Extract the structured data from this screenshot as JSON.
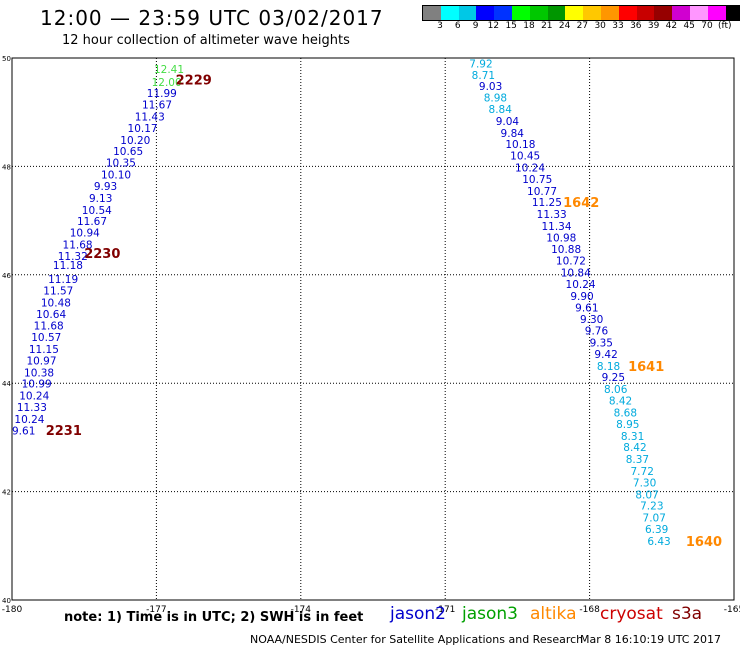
{
  "header": {
    "title": "12:00 — 23:59 UTC 03/02/2017",
    "subtitle": "12 hour collection of altimeter wave heights"
  },
  "colorbar": {
    "colors": [
      "#808080",
      "#00ffff",
      "#00c8e6",
      "#0000ff",
      "#0032ff",
      "#00ff00",
      "#00c800",
      "#009600",
      "#ffff00",
      "#ffc800",
      "#ff9600",
      "#ff0000",
      "#c80000",
      "#960000",
      "#d000d0",
      "#ff96ff",
      "#ff00ff",
      "#000000"
    ],
    "ticks": [
      "3",
      "6",
      "9",
      "12",
      "15",
      "18",
      "21",
      "24",
      "27",
      "30",
      "33",
      "36",
      "39",
      "42",
      "45",
      "70"
    ],
    "unit": "(ft)"
  },
  "map": {
    "lon_range": [
      -180,
      -165
    ],
    "lat_range": [
      40,
      50
    ],
    "lon_ticks": [
      "-180",
      "-177",
      "-174",
      "-171",
      "-168",
      "-165"
    ],
    "lat_ticks": [
      "50",
      "48",
      "46",
      "44",
      "42",
      "40"
    ],
    "grid": "dotted"
  },
  "tracks": [
    {
      "satellite": "jason2",
      "points": [
        {
          "v": "12.41",
          "lon": -177.05,
          "lat": 49.8,
          "c": "#44dd44"
        },
        {
          "v": "12.00",
          "lon": -177.1,
          "lat": 49.56,
          "c": "#44dd44"
        },
        {
          "v": "11.99",
          "lon": -177.2,
          "lat": 49.35,
          "c": "#0000cc"
        },
        {
          "v": "11.67",
          "lon": -177.3,
          "lat": 49.14,
          "c": "#0000cc"
        },
        {
          "v": "11.43",
          "lon": -177.45,
          "lat": 48.92,
          "c": "#0000cc"
        },
        {
          "v": "10.17",
          "lon": -177.6,
          "lat": 48.71,
          "c": "#0000cc"
        },
        {
          "v": "10.20",
          "lon": -177.75,
          "lat": 48.49,
          "c": "#0000cc"
        },
        {
          "v": "10.65",
          "lon": -177.9,
          "lat": 48.28,
          "c": "#0000cc"
        },
        {
          "v": "10.35",
          "lon": -178.05,
          "lat": 48.07,
          "c": "#0000cc"
        },
        {
          "v": "10.10",
          "lon": -178.15,
          "lat": 47.85,
          "c": "#0000cc"
        },
        {
          "v": "9.93",
          "lon": -178.3,
          "lat": 47.64,
          "c": "#0000cc"
        },
        {
          "v": "9.13",
          "lon": -178.4,
          "lat": 47.42,
          "c": "#0000cc"
        },
        {
          "v": "10.54",
          "lon": -178.55,
          "lat": 47.2,
          "c": "#0000cc"
        },
        {
          "v": "11.67",
          "lon": -178.65,
          "lat": 46.99,
          "c": "#0000cc"
        },
        {
          "v": "10.94",
          "lon": -178.8,
          "lat": 46.78,
          "c": "#0000cc"
        },
        {
          "v": "11.68",
          "lon": -178.95,
          "lat": 46.56,
          "c": "#0000cc"
        },
        {
          "v": "11.32",
          "lon": -179.05,
          "lat": 46.35,
          "c": "#0000cc"
        },
        {
          "v": "11.18",
          "lon": -179.15,
          "lat": 46.18,
          "c": "#0000cc"
        },
        {
          "v": "11.19",
          "lon": -179.25,
          "lat": 45.92,
          "c": "#0000cc"
        },
        {
          "v": "11.57",
          "lon": -179.35,
          "lat": 45.71,
          "c": "#0000cc"
        },
        {
          "v": "10.48",
          "lon": -179.4,
          "lat": 45.49,
          "c": "#0000cc"
        },
        {
          "v": "10.64",
          "lon": -179.5,
          "lat": 45.28,
          "c": "#0000cc"
        },
        {
          "v": "11.68",
          "lon": -179.55,
          "lat": 45.06,
          "c": "#0000cc"
        },
        {
          "v": "10.57",
          "lon": -179.6,
          "lat": 44.85,
          "c": "#0000cc"
        },
        {
          "v": "11.15",
          "lon": -179.65,
          "lat": 44.63,
          "c": "#0000cc"
        },
        {
          "v": "10.97",
          "lon": -179.7,
          "lat": 44.42,
          "c": "#0000cc"
        },
        {
          "v": "10.38",
          "lon": -179.75,
          "lat": 44.2,
          "c": "#0000cc"
        },
        {
          "v": "10.99",
          "lon": -179.8,
          "lat": 43.99,
          "c": "#0000cc"
        },
        {
          "v": "10.24",
          "lon": -179.85,
          "lat": 43.77,
          "c": "#0000cc"
        },
        {
          "v": "11.33",
          "lon": -179.9,
          "lat": 43.56,
          "c": "#0000cc"
        },
        {
          "v": "10.24",
          "lon": -179.95,
          "lat": 43.34,
          "c": "#0000cc"
        },
        {
          "v": "9.61",
          "lon": -180,
          "lat": 43.13,
          "c": "#0000cc"
        }
      ]
    },
    {
      "satellite": "jason2",
      "points": [
        {
          "v": "7.92",
          "lon": -170.5,
          "lat": 49.9,
          "c": "#00aadd"
        },
        {
          "v": "8.71",
          "lon": -170.45,
          "lat": 49.69,
          "c": "#00aadd"
        },
        {
          "v": "9.03",
          "lon": -170.3,
          "lat": 49.48,
          "c": "#0000cc"
        },
        {
          "v": "8.98",
          "lon": -170.2,
          "lat": 49.27,
          "c": "#00aadd"
        },
        {
          "v": "8.84",
          "lon": -170.1,
          "lat": 49.06,
          "c": "#00aadd"
        },
        {
          "v": "9.04",
          "lon": -169.95,
          "lat": 48.84,
          "c": "#0000cc"
        },
        {
          "v": "9.84",
          "lon": -169.85,
          "lat": 48.62,
          "c": "#0000cc"
        },
        {
          "v": "10.18",
          "lon": -169.75,
          "lat": 48.41,
          "c": "#0000cc"
        },
        {
          "v": "10.45",
          "lon": -169.65,
          "lat": 48.2,
          "c": "#0000cc"
        },
        {
          "v": "10.24",
          "lon": -169.55,
          "lat": 47.98,
          "c": "#0000cc"
        },
        {
          "v": "10.75",
          "lon": -169.4,
          "lat": 47.77,
          "c": "#0000cc"
        },
        {
          "v": "10.77",
          "lon": -169.3,
          "lat": 47.55,
          "c": "#0000cc"
        },
        {
          "v": "11.25",
          "lon": -169.2,
          "lat": 47.34,
          "c": "#0000cc"
        },
        {
          "v": "11.33",
          "lon": -169.1,
          "lat": 47.12,
          "c": "#0000cc"
        },
        {
          "v": "11.34",
          "lon": -169.0,
          "lat": 46.9,
          "c": "#0000cc"
        },
        {
          "v": "10.98",
          "lon": -168.9,
          "lat": 46.69,
          "c": "#0000cc"
        },
        {
          "v": "10.88",
          "lon": -168.8,
          "lat": 46.48,
          "c": "#0000cc"
        },
        {
          "v": "10.72",
          "lon": -168.7,
          "lat": 46.26,
          "c": "#0000cc"
        },
        {
          "v": "10.84",
          "lon": -168.6,
          "lat": 46.04,
          "c": "#0000cc"
        },
        {
          "v": "10.24",
          "lon": -168.5,
          "lat": 45.83,
          "c": "#0000cc"
        },
        {
          "v": "9.90",
          "lon": -168.4,
          "lat": 45.61,
          "c": "#0000cc"
        },
        {
          "v": "9.61",
          "lon": -168.3,
          "lat": 45.4,
          "c": "#0000cc"
        },
        {
          "v": "9.30",
          "lon": -168.2,
          "lat": 45.18,
          "c": "#0000cc"
        },
        {
          "v": "9.76",
          "lon": -168.1,
          "lat": 44.97,
          "c": "#0000cc"
        },
        {
          "v": "9.35",
          "lon": -168.0,
          "lat": 44.75,
          "c": "#0000cc"
        },
        {
          "v": "9.42",
          "lon": -167.9,
          "lat": 44.54,
          "c": "#0000cc"
        },
        {
          "v": "8.18",
          "lon": -167.85,
          "lat": 44.32,
          "c": "#00aadd"
        },
        {
          "v": "9.25",
          "lon": -167.75,
          "lat": 44.11,
          "c": "#0000cc"
        },
        {
          "v": "8.06",
          "lon": -167.7,
          "lat": 43.89,
          "c": "#00aadd"
        },
        {
          "v": "8.42",
          "lon": -167.6,
          "lat": 43.68,
          "c": "#00aadd"
        },
        {
          "v": "8.68",
          "lon": -167.5,
          "lat": 43.46,
          "c": "#00aadd"
        },
        {
          "v": "8.95",
          "lon": -167.45,
          "lat": 43.25,
          "c": "#00aadd"
        },
        {
          "v": "8.31",
          "lon": -167.35,
          "lat": 43.03,
          "c": "#00aadd"
        },
        {
          "v": "8.42",
          "lon": -167.3,
          "lat": 42.82,
          "c": "#00aadd"
        },
        {
          "v": "8.37",
          "lon": -167.25,
          "lat": 42.6,
          "c": "#00aadd"
        },
        {
          "v": "7.72",
          "lon": -167.15,
          "lat": 42.38,
          "c": "#00aadd"
        },
        {
          "v": "7.30",
          "lon": -167.1,
          "lat": 42.17,
          "c": "#00aadd"
        },
        {
          "v": "8.07",
          "lon": -167.05,
          "lat": 41.95,
          "c": "#00aadd"
        },
        {
          "v": "7.23",
          "lon": -166.95,
          "lat": 41.74,
          "c": "#00aadd"
        },
        {
          "v": "7.07",
          "lon": -166.9,
          "lat": 41.52,
          "c": "#00aadd"
        },
        {
          "v": "6.39",
          "lon": -166.85,
          "lat": 41.31,
          "c": "#00aadd"
        },
        {
          "v": "6.43",
          "lon": -166.8,
          "lat": 41.09,
          "c": "#00aadd"
        }
      ]
    }
  ],
  "time_labels": [
    {
      "t": "2229",
      "lon": -176.6,
      "lat": 49.6,
      "c": "#800000"
    },
    {
      "t": "2230",
      "lon": -178.5,
      "lat": 46.4,
      "c": "#800000"
    },
    {
      "t": "2231",
      "lon": -179.3,
      "lat": 43.14,
      "c": "#800000"
    },
    {
      "t": "1642",
      "lon": -168.55,
      "lat": 47.34,
      "c": "#ff8800"
    },
    {
      "t": "1641",
      "lon": -167.2,
      "lat": 44.32,
      "c": "#ff8800"
    },
    {
      "t": "1640",
      "lon": -166.0,
      "lat": 41.09,
      "c": "#ff8800"
    }
  ],
  "legend": [
    {
      "name": "jason2",
      "color": "#0000cc"
    },
    {
      "name": "jason3",
      "color": "#00a000"
    },
    {
      "name": "altika",
      "color": "#ff8800"
    },
    {
      "name": "cryosat",
      "color": "#cc0000"
    },
    {
      "name": "s3a",
      "color": "#800000"
    }
  ],
  "note": "note:  1) Time is in UTC;  2) SWH is in feet",
  "footer": "NOAA/NESDIS Center for Satellite Applications and Research",
  "footer_time": "Mar  8 16:10:19 UTC 2017"
}
